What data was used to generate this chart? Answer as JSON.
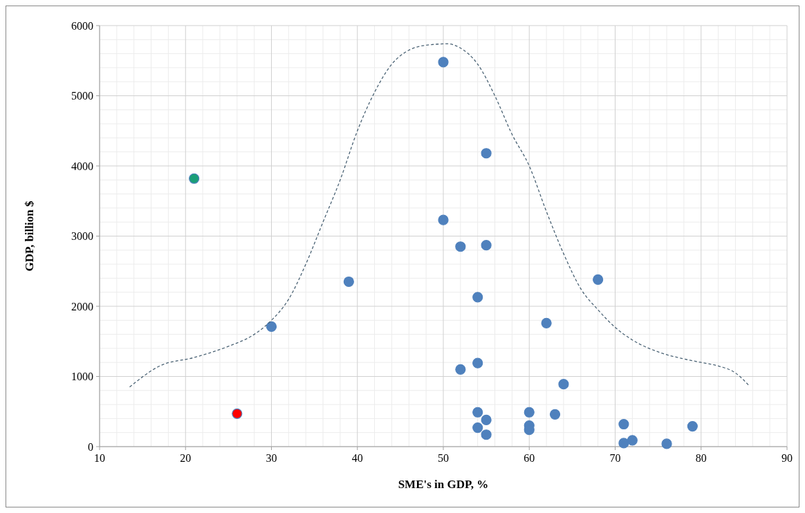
{
  "chart_data": {
    "type": "scatter",
    "xlabel": "SME's in GDP, %",
    "ylabel": "GDP, billion $",
    "xlim": [
      10,
      90
    ],
    "ylim": [
      0,
      6000
    ],
    "xticks": [
      10,
      20,
      30,
      40,
      50,
      60,
      70,
      80,
      90
    ],
    "yticks": [
      0,
      1000,
      2000,
      3000,
      4000,
      5000,
      6000
    ],
    "grid": true,
    "series": [
      {
        "color": "#4f81bd",
        "marker": "circle",
        "colors": [
          "#1a9e78",
          "#ff0000",
          "#4f81bd",
          "#4f81bd",
          "#4f81bd",
          "#4f81bd",
          "#4f81bd",
          "#4f81bd",
          "#4f81bd",
          "#4f81bd",
          "#4f81bd",
          "#4f81bd",
          "#4f81bd",
          "#4f81bd",
          "#4f81bd",
          "#4f81bd",
          "#4f81bd",
          "#4f81bd",
          "#4f81bd",
          "#4f81bd",
          "#4f81bd",
          "#4f81bd",
          "#4f81bd",
          "#4f81bd",
          "#4f81bd",
          "#4f81bd",
          "#4f81bd",
          "#4f81bd"
        ],
        "x": [
          21,
          26,
          30,
          39,
          50,
          50,
          52,
          52,
          54,
          54,
          54,
          54,
          55,
          55,
          55,
          55,
          60,
          60,
          60,
          62,
          63,
          64,
          68,
          71,
          71,
          72,
          76,
          79
        ],
        "values": [
          3820,
          470,
          1710,
          2350,
          5480,
          3230,
          2850,
          1100,
          2130,
          1190,
          490,
          270,
          4180,
          2870,
          380,
          170,
          490,
          300,
          240,
          1760,
          460,
          890,
          2380,
          320,
          50,
          90,
          40,
          290
        ]
      },
      {
        "type": "line",
        "color": "#4a6274",
        "line_style": "dashed",
        "marker": "none",
        "x": [
          13.5,
          17,
          21,
          25,
          28,
          30,
          32,
          34,
          36,
          38,
          40,
          42,
          44,
          46,
          48,
          50.5,
          52,
          54,
          56,
          58,
          60,
          62,
          64,
          66,
          68,
          70,
          72,
          75,
          78,
          80,
          82,
          84,
          85.5
        ],
        "values": [
          850,
          1150,
          1270,
          1430,
          1600,
          1800,
          2100,
          2600,
          3200,
          3800,
          4500,
          5050,
          5450,
          5650,
          5720,
          5740,
          5680,
          5450,
          5000,
          4450,
          4000,
          3350,
          2750,
          2250,
          1950,
          1700,
          1520,
          1350,
          1250,
          1200,
          1150,
          1050,
          880
        ]
      }
    ]
  }
}
